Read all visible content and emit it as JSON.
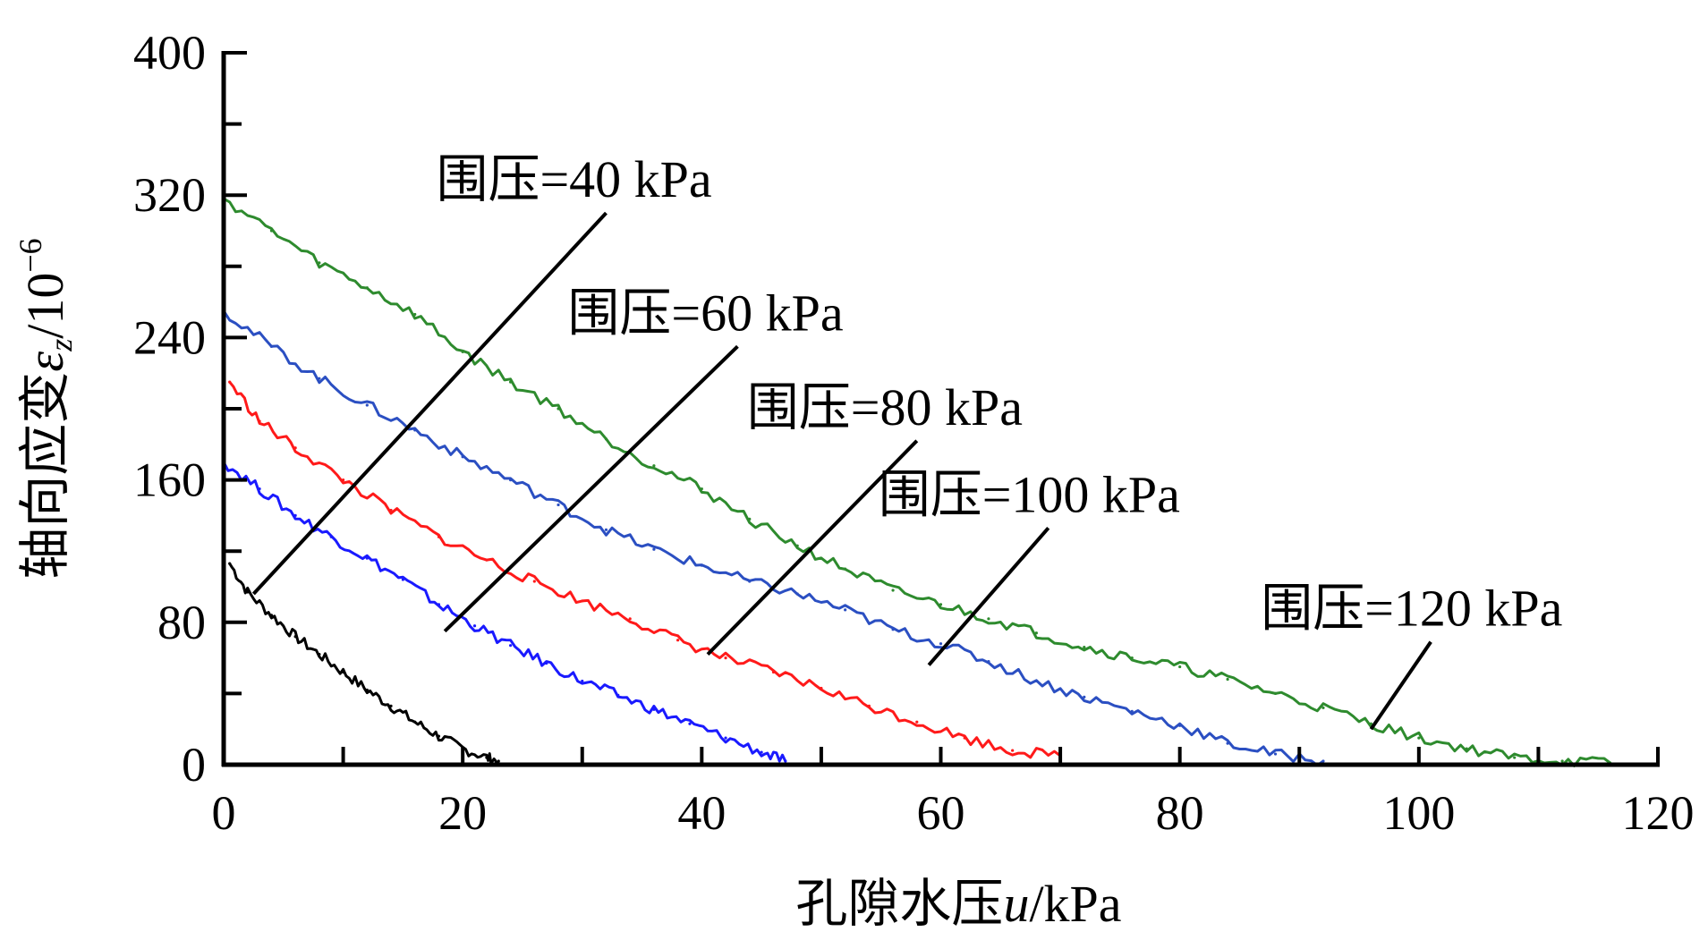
{
  "chart_data": {
    "type": "line",
    "title": "",
    "xlabel": "孔隙水压u/kPa",
    "xlabel_parts": {
      "prefix": "孔隙水压",
      "var": "u",
      "suffix": "/kPa"
    },
    "ylabel": "轴向应变εz/10−6",
    "ylabel_parts": {
      "prefix": "轴向应变",
      "var": "ε",
      "sub": "z",
      "suffix": "/10",
      "sup": "−6"
    },
    "xlim": [
      0,
      120
    ],
    "ylim": [
      0,
      400
    ],
    "x_ticks": [
      0,
      20,
      40,
      60,
      80,
      100,
      120
    ],
    "x_tick_labels": [
      "0",
      "20",
      "40",
      "60",
      "80",
      "100",
      "120"
    ],
    "x_minor_ticks": [
      10,
      30,
      50,
      70,
      90,
      110
    ],
    "y_ticks": [
      0,
      80,
      160,
      240,
      320,
      400
    ],
    "y_tick_labels": [
      "0",
      "80",
      "160",
      "240",
      "320",
      "400"
    ],
    "y_minor_ticks": [
      40,
      120,
      200,
      280,
      360
    ],
    "grid": false,
    "series": [
      {
        "name": "围压=40 kPa",
        "color": "#000000",
        "x": [
          0.5,
          2,
          4,
          6,
          8,
          10,
          12,
          14,
          16,
          18,
          20,
          22,
          23
        ],
        "y": [
          113,
          97,
          84,
          72,
          62,
          52,
          42,
          33,
          24,
          16,
          9,
          4,
          2
        ]
      },
      {
        "name": "围压=60 kPa",
        "color": "#1a1aff",
        "x": [
          0,
          3,
          6,
          9,
          12,
          15,
          18,
          21,
          24,
          27,
          30,
          33,
          36,
          39,
          42,
          45,
          47
        ],
        "y": [
          170,
          155,
          140,
          128,
          116,
          104,
          90,
          78,
          67,
          57,
          47,
          39,
          31,
          23,
          15,
          7,
          2
        ]
      },
      {
        "name": "围压=80 kPa",
        "color": "#ff1a1a",
        "x": [
          0.5,
          3,
          6,
          10,
          14,
          18,
          22,
          26,
          30,
          34,
          38,
          42,
          46,
          50,
          54,
          58,
          62,
          66,
          70
        ],
        "y": [
          215,
          193,
          178,
          160,
          143,
          128,
          115,
          103,
          92,
          82,
          70,
          60,
          52,
          43,
          33,
          24,
          15,
          8,
          5
        ]
      },
      {
        "name": "围压=100 kPa",
        "color": "#2b4fc2",
        "x": [
          0,
          4,
          8,
          12,
          16,
          20,
          24,
          28,
          32,
          36,
          40,
          44,
          48,
          52,
          56,
          60,
          64,
          68,
          72,
          76,
          80,
          84,
          88,
          92
        ],
        "y": [
          255,
          235,
          217,
          202,
          188,
          173,
          160,
          146,
          132,
          121,
          112,
          103,
          96,
          87,
          76,
          68,
          58,
          47,
          38,
          30,
          22,
          12,
          6,
          2
        ]
      },
      {
        "name": "围压=120 kPa",
        "color": "#2e8b2e",
        "x": [
          0,
          4,
          8,
          12,
          16,
          20,
          24,
          28,
          32,
          36,
          40,
          44,
          48,
          52,
          56,
          60,
          64,
          68,
          72,
          76,
          80,
          84,
          88,
          92,
          96,
          100,
          104,
          108,
          112,
          116
        ],
        "y": [
          318,
          300,
          282,
          268,
          253,
          232,
          215,
          200,
          183,
          168,
          155,
          138,
          123,
          110,
          98,
          90,
          82,
          74,
          66,
          60,
          55,
          48,
          40,
          32,
          23,
          15,
          9,
          4,
          2,
          1
        ]
      }
    ],
    "annotations": [
      {
        "text": "围压=40 kPa",
        "points_to": [
          2.5,
          96
        ],
        "label_at": [
          32,
          310
        ]
      },
      {
        "text": "围压=60 kPa",
        "points_to": [
          18.5,
          75
        ],
        "label_at": [
          43,
          235
        ]
      },
      {
        "text": "围压=80 kPa",
        "points_to": [
          40.5,
          62
        ],
        "label_at": [
          58,
          182
        ]
      },
      {
        "text": "围压=100 kPa",
        "points_to": [
          59,
          56
        ],
        "label_at": [
          69,
          133
        ]
      },
      {
        "text": "围压=120 kPa",
        "points_to": [
          96,
          20
        ],
        "label_at": [
          101,
          69
        ]
      }
    ]
  }
}
